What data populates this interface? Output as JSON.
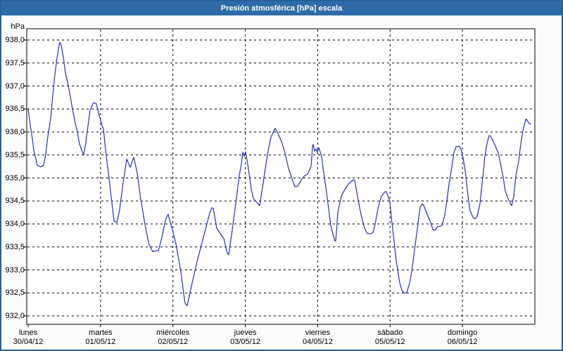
{
  "window": {
    "title": "Presión atmosférica [hPa] escala"
  },
  "colors": {
    "titlebar": "#2e6ba6",
    "window_border": "#27619a",
    "plot_background": "#ffffff",
    "plot_border": "#000000",
    "grid": "#000000",
    "line": "#2d3ab8",
    "label_text": "#000000"
  },
  "chart_data": {
    "type": "line",
    "title": "Presión atmosférica [hPa] escala",
    "y_unit_label": "hPa",
    "ylabel": "hPa",
    "xlabel": "",
    "grid": "dashed",
    "legend": "none",
    "ylim": [
      931.82,
      938.24
    ],
    "y_ticks": [
      {
        "label": "938,0",
        "value": 938.0
      },
      {
        "label": "937,5",
        "value": 937.5
      },
      {
        "label": "937,0",
        "value": 937.0
      },
      {
        "label": "936,5",
        "value": 936.5
      },
      {
        "label": "936,0",
        "value": 936.0
      },
      {
        "label": "935,5",
        "value": 935.5
      },
      {
        "label": "935,0",
        "value": 935.0
      },
      {
        "label": "934,5",
        "value": 934.5
      },
      {
        "label": "934,0",
        "value": 934.0
      },
      {
        "label": "933,5",
        "value": 933.5
      },
      {
        "label": "933,0",
        "value": 933.0
      },
      {
        "label": "932,5",
        "value": 932.5
      },
      {
        "label": "932,0",
        "value": 932.0
      }
    ],
    "x_days": [
      {
        "weekday": "lunes",
        "date": "30/04/12"
      },
      {
        "weekday": "martes",
        "date": "01/05/12"
      },
      {
        "weekday": "miércoles",
        "date": "02/05/12"
      },
      {
        "weekday": "jueves",
        "date": "03/05/12"
      },
      {
        "weekday": "viernes",
        "date": "04/05/12"
      },
      {
        "weekday": "sábado",
        "date": "05/05/12"
      },
      {
        "weekday": "domingo",
        "date": "06/05/12"
      }
    ],
    "x_range_hours": 168,
    "series": [
      {
        "name": "Presión atmosférica",
        "unit": "hPa",
        "points_format": "[hours_since_monday_00, hPa]",
        "points": [
          [
            0.0,
            936.5
          ],
          [
            0.7,
            936.15
          ],
          [
            1.4,
            935.85
          ],
          [
            1.9,
            935.59
          ],
          [
            2.5,
            935.43
          ],
          [
            3.0,
            935.28
          ],
          [
            4.2,
            935.24
          ],
          [
            5.1,
            935.28
          ],
          [
            5.8,
            935.51
          ],
          [
            6.5,
            935.89
          ],
          [
            7.5,
            936.31
          ],
          [
            8.2,
            936.81
          ],
          [
            8.9,
            937.27
          ],
          [
            9.6,
            937.62
          ],
          [
            10.3,
            937.9
          ],
          [
            10.5,
            937.95
          ],
          [
            11.0,
            937.88
          ],
          [
            11.7,
            937.62
          ],
          [
            12.4,
            937.27
          ],
          [
            13.3,
            937.01
          ],
          [
            14.0,
            936.76
          ],
          [
            14.7,
            936.5
          ],
          [
            15.6,
            936.2
          ],
          [
            16.3,
            936.0
          ],
          [
            17.0,
            935.74
          ],
          [
            18.0,
            935.56
          ],
          [
            18.4,
            935.5
          ],
          [
            19.1,
            935.77
          ],
          [
            19.8,
            936.12
          ],
          [
            20.5,
            936.47
          ],
          [
            21.7,
            936.64
          ],
          [
            22.6,
            936.61
          ],
          [
            23.3,
            936.43
          ],
          [
            24.0,
            936.25
          ],
          [
            25.0,
            936.05
          ],
          [
            25.7,
            935.6
          ],
          [
            26.8,
            935.0
          ],
          [
            27.5,
            934.6
          ],
          [
            28.5,
            934.06
          ],
          [
            29.4,
            934.03
          ],
          [
            30.3,
            934.3
          ],
          [
            31.5,
            934.9
          ],
          [
            32.7,
            935.41
          ],
          [
            33.8,
            935.23
          ],
          [
            35.0,
            935.45
          ],
          [
            36.2,
            935.1
          ],
          [
            37.3,
            934.54
          ],
          [
            38.7,
            934.0
          ],
          [
            40.1,
            933.55
          ],
          [
            41.3,
            933.4
          ],
          [
            43.2,
            933.42
          ],
          [
            44.3,
            933.7
          ],
          [
            45.5,
            934.08
          ],
          [
            46.4,
            934.21
          ],
          [
            47.8,
            933.87
          ],
          [
            49.0,
            933.57
          ],
          [
            50.6,
            932.96
          ],
          [
            52.0,
            932.28
          ],
          [
            52.7,
            932.22
          ],
          [
            54.4,
            932.72
          ],
          [
            56.0,
            933.18
          ],
          [
            57.2,
            933.48
          ],
          [
            58.8,
            933.88
          ],
          [
            60.2,
            934.24
          ],
          [
            60.9,
            934.35
          ],
          [
            61.4,
            934.34
          ],
          [
            62.5,
            933.91
          ],
          [
            63.7,
            933.79
          ],
          [
            64.9,
            933.68
          ],
          [
            66.0,
            933.37
          ],
          [
            66.5,
            933.33
          ],
          [
            67.7,
            933.88
          ],
          [
            68.8,
            934.44
          ],
          [
            70.0,
            935.05
          ],
          [
            70.7,
            935.31
          ],
          [
            71.2,
            935.56
          ],
          [
            71.6,
            935.47
          ],
          [
            72.1,
            935.57
          ],
          [
            73.0,
            935.21
          ],
          [
            74.0,
            934.75
          ],
          [
            74.7,
            934.55
          ],
          [
            75.8,
            934.47
          ],
          [
            76.8,
            934.4
          ],
          [
            78.2,
            935.01
          ],
          [
            79.3,
            935.51
          ],
          [
            80.5,
            935.89
          ],
          [
            81.9,
            936.08
          ],
          [
            82.8,
            935.97
          ],
          [
            84.0,
            935.79
          ],
          [
            85.2,
            935.54
          ],
          [
            86.3,
            935.21
          ],
          [
            87.5,
            934.98
          ],
          [
            88.4,
            934.81
          ],
          [
            89.4,
            934.82
          ],
          [
            90.5,
            934.95
          ],
          [
            91.7,
            935.05
          ],
          [
            92.6,
            935.08
          ],
          [
            93.8,
            935.25
          ],
          [
            94.3,
            935.69
          ],
          [
            94.5,
            935.73
          ],
          [
            95.0,
            935.58
          ],
          [
            95.4,
            935.63
          ],
          [
            95.9,
            935.56
          ],
          [
            96.4,
            935.66
          ],
          [
            97.3,
            935.47
          ],
          [
            97.8,
            935.21
          ],
          [
            98.5,
            934.9
          ],
          [
            99.2,
            934.55
          ],
          [
            99.6,
            934.34
          ],
          [
            100.3,
            933.98
          ],
          [
            101.0,
            933.79
          ],
          [
            101.7,
            933.63
          ],
          [
            102.0,
            933.63
          ],
          [
            102.7,
            934.25
          ],
          [
            103.8,
            934.6
          ],
          [
            105.0,
            934.75
          ],
          [
            106.2,
            934.87
          ],
          [
            107.8,
            934.96
          ],
          [
            108.3,
            934.95
          ],
          [
            109.2,
            934.6
          ],
          [
            110.1,
            934.29
          ],
          [
            110.8,
            934.09
          ],
          [
            111.5,
            933.91
          ],
          [
            112.5,
            933.79
          ],
          [
            113.6,
            933.79
          ],
          [
            114.3,
            933.81
          ],
          [
            115.0,
            933.98
          ],
          [
            116.0,
            934.34
          ],
          [
            117.1,
            934.6
          ],
          [
            118.3,
            934.7
          ],
          [
            118.8,
            934.7
          ],
          [
            119.9,
            934.49
          ],
          [
            120.6,
            934.03
          ],
          [
            121.3,
            933.63
          ],
          [
            122.0,
            933.22
          ],
          [
            122.7,
            932.92
          ],
          [
            123.2,
            932.72
          ],
          [
            123.9,
            932.56
          ],
          [
            124.6,
            932.5
          ],
          [
            125.5,
            932.5
          ],
          [
            126.5,
            932.72
          ],
          [
            127.2,
            932.97
          ],
          [
            127.6,
            933.18
          ],
          [
            128.3,
            933.53
          ],
          [
            129.0,
            933.88
          ],
          [
            129.5,
            934.14
          ],
          [
            130.0,
            934.37
          ],
          [
            130.7,
            934.44
          ],
          [
            131.1,
            934.41
          ],
          [
            131.8,
            934.29
          ],
          [
            132.5,
            934.18
          ],
          [
            133.5,
            934.03
          ],
          [
            134.2,
            933.88
          ],
          [
            134.9,
            933.86
          ],
          [
            135.8,
            933.94
          ],
          [
            136.5,
            933.95
          ],
          [
            137.2,
            933.97
          ],
          [
            138.1,
            934.18
          ],
          [
            138.8,
            934.49
          ],
          [
            139.5,
            934.85
          ],
          [
            140.5,
            935.25
          ],
          [
            141.2,
            935.56
          ],
          [
            141.9,
            935.68
          ],
          [
            142.8,
            935.69
          ],
          [
            143.3,
            935.66
          ],
          [
            144.0,
            935.51
          ],
          [
            144.7,
            935.25
          ],
          [
            145.1,
            935.05
          ],
          [
            145.6,
            934.75
          ],
          [
            146.1,
            934.49
          ],
          [
            146.5,
            934.29
          ],
          [
            147.5,
            934.14
          ],
          [
            148.2,
            934.11
          ],
          [
            148.9,
            934.17
          ],
          [
            149.8,
            934.44
          ],
          [
            150.3,
            934.75
          ],
          [
            151.0,
            935.16
          ],
          [
            151.4,
            935.47
          ],
          [
            152.1,
            935.73
          ],
          [
            152.8,
            935.92
          ],
          [
            153.3,
            935.91
          ],
          [
            154.0,
            935.82
          ],
          [
            154.9,
            935.69
          ],
          [
            155.9,
            935.54
          ],
          [
            156.8,
            935.25
          ],
          [
            157.5,
            935.01
          ],
          [
            158.2,
            934.72
          ],
          [
            159.1,
            934.55
          ],
          [
            160.1,
            934.42
          ],
          [
            160.3,
            934.4
          ],
          [
            161.0,
            934.6
          ],
          [
            161.7,
            935.05
          ],
          [
            162.6,
            935.35
          ],
          [
            163.3,
            935.73
          ],
          [
            164.0,
            936.02
          ],
          [
            165.0,
            936.27
          ],
          [
            165.2,
            936.28
          ],
          [
            166.1,
            936.18
          ],
          [
            166.6,
            936.17
          ]
        ]
      }
    ]
  }
}
